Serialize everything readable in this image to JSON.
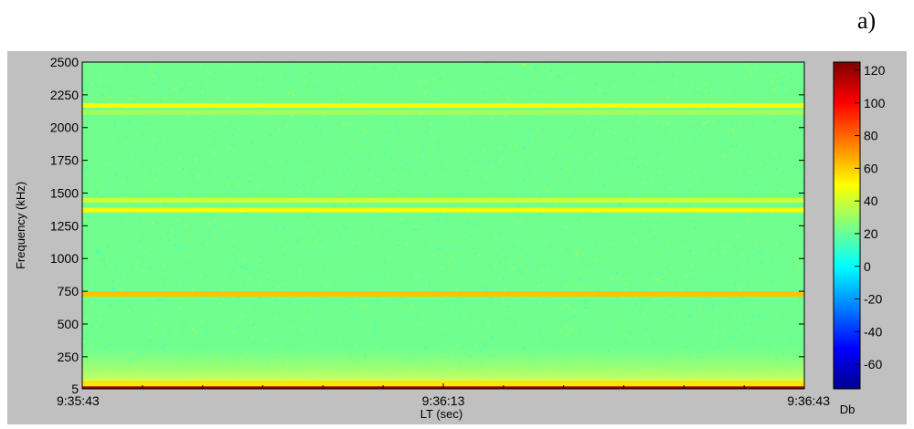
{
  "panel_label": "a)",
  "chart_data": {
    "type": "heatmap",
    "xlabel": "LT (sec)",
    "ylabel": "Frequency (kHz)",
    "x_ticks": [
      "9:35:43",
      "9:36:13",
      "9:36:43"
    ],
    "y_ticks": [
      5,
      250,
      500,
      750,
      1000,
      1250,
      1500,
      1750,
      2000,
      2250,
      2500
    ],
    "ylim": [
      5,
      2500
    ],
    "colorbar": {
      "label": "Db",
      "ticks": [
        120,
        100,
        80,
        60,
        40,
        20,
        0,
        -20,
        -40,
        -60
      ],
      "range": [
        -75,
        125
      ],
      "colormap": "jet"
    },
    "background_level_db": 22,
    "bands": [
      {
        "freq_khz": 10,
        "level_db": 120
      },
      {
        "freq_khz": 45,
        "level_db": 55
      },
      {
        "freq_khz": 730,
        "level_db": 62
      },
      {
        "freq_khz": 1370,
        "level_db": 48
      },
      {
        "freq_khz": 1445,
        "level_db": 40
      },
      {
        "freq_khz": 2170,
        "level_db": 48
      },
      {
        "freq_khz": 2115,
        "level_db": 32
      }
    ]
  }
}
